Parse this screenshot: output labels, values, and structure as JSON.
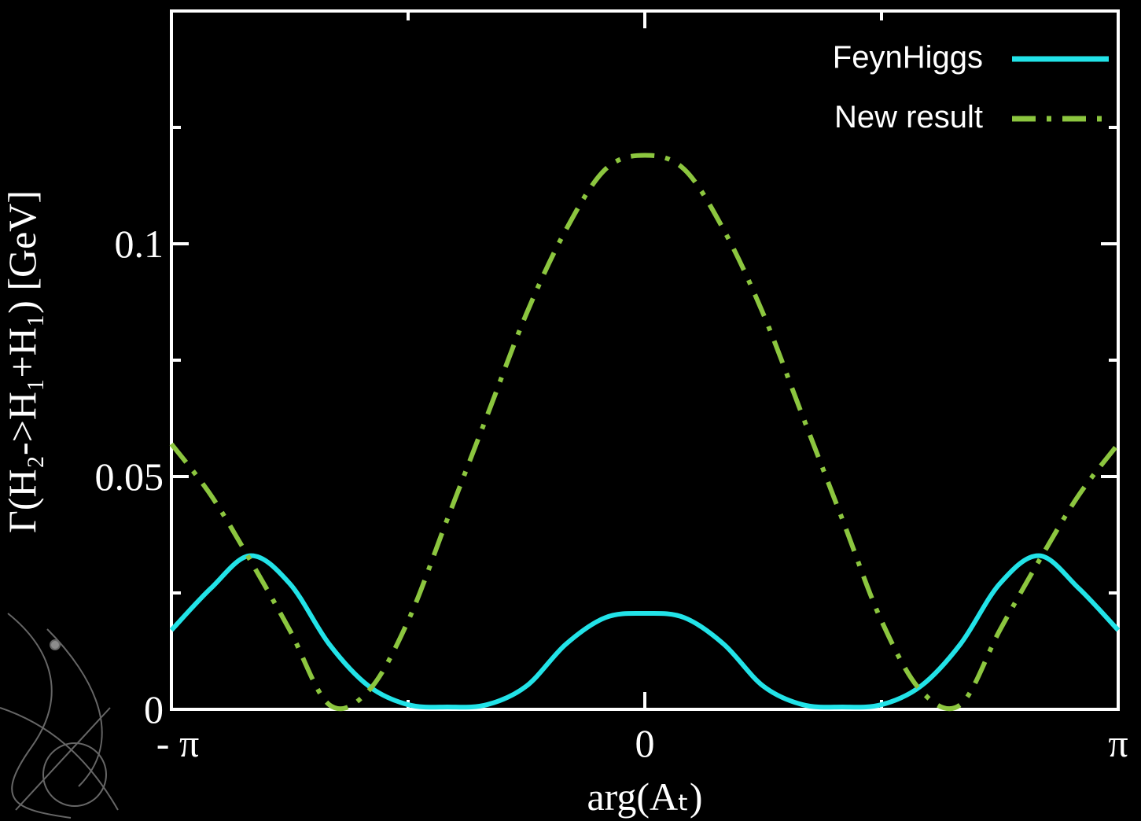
{
  "chart_data": {
    "type": "line",
    "y_label": "Γ(H₂->H₁+H₁) [GeV]",
    "x_label": "arg(Aₜ)",
    "x": [
      -3.1416,
      -2.8798,
      -2.618,
      -2.3562,
      -2.0944,
      -1.8326,
      -1.5708,
      -1.309,
      -1.0472,
      -0.7854,
      -0.5236,
      -0.2618,
      0,
      0.2618,
      0.5236,
      0.7854,
      1.0472,
      1.309,
      1.5708,
      1.8326,
      2.0944,
      2.3562,
      2.618,
      2.8798,
      3.1416
    ],
    "series": [
      {
        "name": "FeynHiggs",
        "color": "#22e3e8",
        "style": "solid",
        "values": [
          0.017,
          0.026,
          0.033,
          0.027,
          0.014,
          0.005,
          0.001,
          0,
          0.001,
          0.005,
          0.014,
          0.0197,
          0.0206,
          0.0197,
          0.014,
          0.005,
          0.001,
          0,
          0.001,
          0.005,
          0.014,
          0.027,
          0.033,
          0.026,
          0.017
        ]
      },
      {
        "name": "New result",
        "color": "#8cc63f",
        "style": "dashdot",
        "values": [
          0.057,
          0.046,
          0.032,
          0.017,
          0.001,
          0.004,
          0.019,
          0.041,
          0.063,
          0.085,
          0.103,
          0.116,
          0.119,
          0.116,
          0.103,
          0.085,
          0.063,
          0.041,
          0.019,
          0.004,
          0.001,
          0.017,
          0.032,
          0.046,
          0.057
        ]
      }
    ],
    "xlim": [
      -3.1416,
      3.1416
    ],
    "xticks": [
      {
        "value": -3.1416,
        "label": "- π"
      },
      0,
      {
        "value": 3.1416,
        "label": "π"
      }
    ],
    "xminor": [
      -1.5708,
      1.5708
    ],
    "ylim": [
      0,
      0.15
    ],
    "yticks": [
      0,
      0.05,
      0.1
    ],
    "yminor": [
      0.025,
      0.075,
      0.125
    ],
    "legend": "top-right"
  }
}
